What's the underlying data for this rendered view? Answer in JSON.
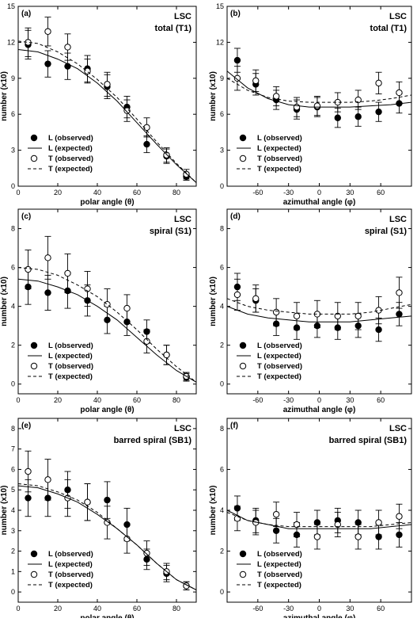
{
  "chart_data": [
    {
      "type": "scatter",
      "panel": "(a)",
      "title": "LSC",
      "subtitle": "total (T1)",
      "xlabel": "polar angle (θ)",
      "ylabel": "number (x10)",
      "xlim": [
        0,
        90
      ],
      "ylim": [
        0,
        15
      ],
      "xticks": [
        0,
        20,
        40,
        60,
        80
      ],
      "yticks": [
        0,
        3,
        6,
        9,
        12,
        15
      ],
      "legend": [
        "L (observed)",
        "L (expected)",
        "T (observed)",
        "T (expected)"
      ],
      "legend_position": "bottom-left",
      "series": [
        {
          "name": "L (observed)",
          "style": "filled-circle",
          "x": [
            5,
            15,
            25,
            35,
            45,
            55,
            65,
            75,
            85
          ],
          "y": [
            11.8,
            10.2,
            10.0,
            9.8,
            8.3,
            6.6,
            3.5,
            2.5,
            0.8
          ],
          "err": [
            1.2,
            1.1,
            1.1,
            1.1,
            1.0,
            0.9,
            0.7,
            0.6,
            0.3
          ]
        },
        {
          "name": "T (observed)",
          "style": "open-circle",
          "x": [
            5,
            15,
            25,
            35,
            45,
            55,
            65,
            75,
            85
          ],
          "y": [
            12.0,
            12.9,
            11.6,
            9.6,
            8.5,
            6.3,
            4.9,
            2.6,
            1.0
          ],
          "err": [
            1.2,
            1.2,
            1.1,
            1.0,
            1.0,
            0.9,
            0.8,
            0.6,
            0.4
          ]
        },
        {
          "name": "L (expected)",
          "style": "solid",
          "x": [
            0,
            10,
            20,
            30,
            40,
            50,
            60,
            70,
            80,
            90
          ],
          "y": [
            11.4,
            11.2,
            10.6,
            9.8,
            8.6,
            7.1,
            5.3,
            3.5,
            1.8,
            0.3
          ]
        },
        {
          "name": "T (expected)",
          "style": "dashed",
          "x": [
            0,
            10,
            20,
            30,
            40,
            50,
            60,
            70,
            80,
            90
          ],
          "y": [
            12.1,
            11.9,
            11.2,
            10.2,
            8.9,
            7.4,
            5.6,
            3.7,
            1.9,
            0.3
          ]
        }
      ]
    },
    {
      "type": "scatter",
      "panel": "(b)",
      "title": "LSC",
      "subtitle": "total (T1)",
      "xlabel": "azimuthal angle (φ)",
      "ylabel": "number (x10)",
      "xlim": [
        -90,
        90
      ],
      "ylim": [
        0,
        15
      ],
      "xticks": [
        -60,
        -30,
        0,
        30,
        60
      ],
      "yticks": [
        0,
        3,
        6,
        9,
        12,
        15
      ],
      "legend": [
        "L (observed)",
        "L (expected)",
        "T (observed)",
        "T (expected)"
      ],
      "legend_position": "bottom-left",
      "series": [
        {
          "name": "L (observed)",
          "style": "filled-circle",
          "x": [
            -80,
            -62,
            -42,
            -22,
            -2,
            18,
            38,
            58,
            78
          ],
          "y": [
            10.5,
            8.5,
            7.2,
            6.4,
            6.6,
            5.7,
            5.8,
            6.2,
            6.9
          ],
          "err": [
            1.0,
            0.9,
            0.8,
            0.8,
            0.8,
            0.8,
            0.8,
            0.8,
            0.8
          ]
        },
        {
          "name": "T (observed)",
          "style": "open-circle",
          "x": [
            -80,
            -62,
            -42,
            -22,
            -2,
            18,
            38,
            58,
            78
          ],
          "y": [
            9.0,
            8.8,
            7.5,
            6.6,
            6.7,
            7.0,
            7.2,
            8.6,
            7.8
          ],
          "err": [
            1.0,
            0.9,
            0.8,
            0.8,
            0.8,
            0.8,
            0.8,
            0.9,
            0.9
          ]
        },
        {
          "name": "L (expected)",
          "style": "solid",
          "x": [
            -90,
            -70,
            -50,
            -30,
            -10,
            10,
            30,
            50,
            70,
            90
          ],
          "y": [
            9.6,
            8.2,
            7.3,
            6.8,
            6.6,
            6.6,
            6.6,
            6.7,
            6.8,
            7.0
          ]
        },
        {
          "name": "T (expected)",
          "style": "dashed",
          "x": [
            -90,
            -70,
            -50,
            -30,
            -10,
            10,
            30,
            50,
            70,
            90
          ],
          "y": [
            9.0,
            8.0,
            7.4,
            7.1,
            7.0,
            7.0,
            7.0,
            7.1,
            7.3,
            7.6
          ]
        }
      ]
    },
    {
      "type": "scatter",
      "panel": "(c)",
      "title": "LSC",
      "subtitle": "spiral (S1)",
      "xlabel": "polar angle (θ)",
      "ylabel": "number (x10)",
      "xlim": [
        0,
        90
      ],
      "ylim": [
        -0.5,
        9
      ],
      "xticks": [
        0,
        20,
        40,
        60,
        80
      ],
      "yticks": [
        0,
        2,
        4,
        6,
        8
      ],
      "legend": [
        "L (observed)",
        "L (expected)",
        "T (observed)",
        "T (expected)"
      ],
      "legend_position": "bottom-left",
      "series": [
        {
          "name": "L (observed)",
          "style": "filled-circle",
          "x": [
            5,
            15,
            25,
            35,
            45,
            55,
            65,
            75,
            85
          ],
          "y": [
            5.0,
            4.7,
            4.8,
            4.3,
            3.3,
            3.2,
            2.7,
            1.5,
            0.35
          ],
          "err": [
            0.9,
            0.9,
            0.9,
            0.8,
            0.7,
            0.7,
            0.6,
            0.5,
            0.2
          ]
        },
        {
          "name": "T (observed)",
          "style": "open-circle",
          "x": [
            5,
            15,
            25,
            35,
            45,
            55,
            65,
            75,
            85
          ],
          "y": [
            5.9,
            6.5,
            5.7,
            4.9,
            4.1,
            3.9,
            2.2,
            1.5,
            0.4
          ],
          "err": [
            1.0,
            1.1,
            1.0,
            0.9,
            0.8,
            0.7,
            0.6,
            0.5,
            0.2
          ]
        },
        {
          "name": "L (expected)",
          "style": "solid",
          "x": [
            0,
            10,
            20,
            30,
            40,
            50,
            60,
            70,
            80,
            90
          ],
          "y": [
            5.4,
            5.3,
            5.0,
            4.6,
            4.0,
            3.3,
            2.4,
            1.5,
            0.7,
            0.1
          ]
        },
        {
          "name": "T (expected)",
          "style": "dashed",
          "x": [
            0,
            10,
            20,
            30,
            40,
            50,
            60,
            70,
            80,
            90
          ],
          "y": [
            6.0,
            5.9,
            5.6,
            5.1,
            4.5,
            3.7,
            2.8,
            1.8,
            0.9,
            0.1
          ]
        }
      ]
    },
    {
      "type": "scatter",
      "panel": "(d)",
      "title": "LSC",
      "subtitle": "spiral (S1)",
      "xlabel": "azimuthal angle (φ)",
      "ylabel": "number (x10)",
      "xlim": [
        -90,
        90
      ],
      "ylim": [
        -0.5,
        9
      ],
      "xticks": [
        -60,
        -30,
        0,
        30,
        60
      ],
      "yticks": [
        0,
        2,
        4,
        6,
        8
      ],
      "legend": [
        "L (observed)",
        "L (expected)",
        "T (observed)",
        "T (expected)"
      ],
      "legend_position": "bottom-left",
      "series": [
        {
          "name": "L (observed)",
          "style": "filled-circle",
          "x": [
            -80,
            -62,
            -42,
            -22,
            -2,
            18,
            38,
            58,
            78
          ],
          "y": [
            5.0,
            4.3,
            3.1,
            2.9,
            3.0,
            2.9,
            3.0,
            2.8,
            3.6
          ],
          "err": [
            0.7,
            0.6,
            0.6,
            0.6,
            0.6,
            0.6,
            0.6,
            0.6,
            0.6
          ]
        },
        {
          "name": "T (observed)",
          "style": "open-circle",
          "x": [
            -80,
            -62,
            -42,
            -22,
            -2,
            18,
            38,
            58,
            78
          ],
          "y": [
            4.6,
            4.4,
            3.7,
            3.5,
            3.6,
            3.5,
            3.5,
            3.8,
            4.7
          ],
          "err": [
            0.8,
            0.7,
            0.7,
            0.7,
            0.7,
            0.7,
            0.7,
            0.7,
            0.8
          ]
        },
        {
          "name": "L (expected)",
          "style": "solid",
          "x": [
            -90,
            -70,
            -50,
            -30,
            -10,
            10,
            30,
            50,
            70,
            90
          ],
          "y": [
            4.0,
            3.6,
            3.4,
            3.3,
            3.2,
            3.2,
            3.2,
            3.3,
            3.4,
            3.5
          ]
        },
        {
          "name": "T (expected)",
          "style": "dashed",
          "x": [
            -90,
            -70,
            -50,
            -30,
            -10,
            10,
            30,
            50,
            70,
            90
          ],
          "y": [
            4.4,
            4.0,
            3.8,
            3.7,
            3.6,
            3.6,
            3.6,
            3.7,
            3.9,
            4.1
          ]
        }
      ]
    },
    {
      "type": "scatter",
      "panel": "(e)",
      "title": "LSC",
      "subtitle": "barred spiral (SB1)",
      "xlabel": "polar angle (θ)",
      "ylabel": "number (x10)",
      "xlim": [
        0,
        90
      ],
      "ylim": [
        -0.5,
        8.5
      ],
      "xticks": [
        0,
        20,
        40,
        60,
        80
      ],
      "yticks": [
        0,
        1,
        2,
        3,
        4,
        5,
        6,
        7,
        8
      ],
      "legend": [
        "L (observed)",
        "L (expected)",
        "T (observed)",
        "T (expected)"
      ],
      "legend_position": "bottom-left",
      "series": [
        {
          "name": "L (observed)",
          "style": "filled-circle",
          "x": [
            5,
            15,
            25,
            35,
            45,
            55,
            65,
            75,
            85
          ],
          "y": [
            4.6,
            4.6,
            5.0,
            4.4,
            4.5,
            3.3,
            1.6,
            0.9,
            0.3
          ],
          "err": [
            0.9,
            0.9,
            0.9,
            0.9,
            0.9,
            0.8,
            0.5,
            0.4,
            0.2
          ]
        },
        {
          "name": "T (observed)",
          "style": "open-circle",
          "x": [
            5,
            15,
            25,
            35,
            45,
            55,
            65,
            75,
            85
          ],
          "y": [
            5.9,
            5.5,
            4.6,
            4.4,
            3.4,
            2.6,
            1.9,
            1.0,
            0.3
          ],
          "err": [
            1.0,
            1.0,
            0.9,
            0.9,
            0.8,
            0.7,
            0.6,
            0.4,
            0.2
          ]
        },
        {
          "name": "L (expected)",
          "style": "solid",
          "x": [
            0,
            10,
            20,
            30,
            40,
            50,
            60,
            70,
            80,
            90
          ],
          "y": [
            5.2,
            5.1,
            4.8,
            4.4,
            3.8,
            3.1,
            2.3,
            1.4,
            0.6,
            0.1
          ]
        },
        {
          "name": "T (expected)",
          "style": "dashed",
          "x": [
            0,
            10,
            20,
            30,
            40,
            50,
            60,
            70,
            80,
            90
          ],
          "y": [
            5.3,
            5.2,
            4.9,
            4.5,
            3.9,
            3.1,
            2.3,
            1.4,
            0.6,
            0.1
          ]
        }
      ]
    },
    {
      "type": "scatter",
      "panel": "(f)",
      "title": "LSC",
      "subtitle": "barred spiral (SB1)",
      "xlabel": "azimuthal angle (φ)",
      "ylabel": "number (x10)",
      "xlim": [
        -90,
        90
      ],
      "ylim": [
        -0.5,
        8.5
      ],
      "xticks": [
        -60,
        -30,
        0,
        30,
        60
      ],
      "yticks": [
        0,
        2,
        4,
        6,
        8
      ],
      "legend": [
        "L (observed)",
        "L (expected)",
        "T (observed)",
        "T (expected)"
      ],
      "legend_position": "bottom-left",
      "series": [
        {
          "name": "L (observed)",
          "style": "filled-circle",
          "x": [
            -80,
            -62,
            -42,
            -22,
            -2,
            18,
            38,
            58,
            78
          ],
          "y": [
            4.1,
            3.5,
            3.0,
            2.8,
            3.4,
            3.5,
            3.4,
            2.7,
            2.8
          ],
          "err": [
            0.6,
            0.6,
            0.6,
            0.6,
            0.6,
            0.6,
            0.6,
            0.6,
            0.6
          ]
        },
        {
          "name": "T (observed)",
          "style": "open-circle",
          "x": [
            -80,
            -62,
            -42,
            -22,
            -2,
            18,
            38,
            58,
            78
          ],
          "y": [
            3.6,
            3.4,
            3.8,
            3.3,
            2.7,
            3.3,
            2.7,
            3.4,
            3.7
          ],
          "err": [
            0.6,
            0.6,
            0.6,
            0.6,
            0.6,
            0.6,
            0.6,
            0.6,
            0.6
          ]
        },
        {
          "name": "L (expected)",
          "style": "solid",
          "x": [
            -90,
            -70,
            -50,
            -30,
            -10,
            10,
            30,
            50,
            70,
            90
          ],
          "y": [
            4.0,
            3.5,
            3.3,
            3.1,
            3.1,
            3.1,
            3.1,
            3.1,
            3.2,
            3.3
          ]
        },
        {
          "name": "T (expected)",
          "style": "dashed",
          "x": [
            -90,
            -70,
            -50,
            -30,
            -10,
            10,
            30,
            50,
            70,
            90
          ],
          "y": [
            3.9,
            3.5,
            3.3,
            3.2,
            3.2,
            3.2,
            3.2,
            3.2,
            3.3,
            3.4
          ]
        }
      ]
    }
  ]
}
